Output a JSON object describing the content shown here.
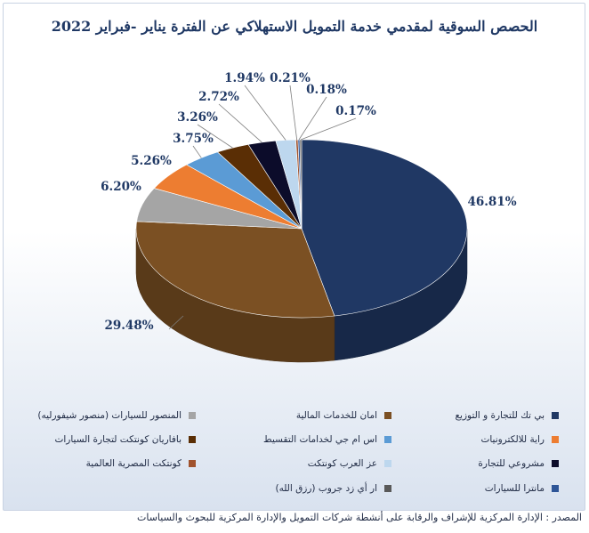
{
  "chart_data": {
    "type": "pie",
    "title": "الحصص السوقية لمقدمي خدمة التمويل الاستهلاكي عن الفترة يناير -فبراير 2022",
    "series": [
      {
        "name": "بي تك للتجارة و التوزيع",
        "value": 46.81,
        "label": "46.81%",
        "color": "#203864"
      },
      {
        "name": "امان للخدمات المالية",
        "value": 29.48,
        "label": "29.48%",
        "color": "#7b5023"
      },
      {
        "name": "المنصور للسيارات (منصور شيفورليه)",
        "value": 6.2,
        "label": "6.20%",
        "color": "#a5a5a5"
      },
      {
        "name": "راية للالكترونيات",
        "value": 5.26,
        "label": "5.26%",
        "color": "#ed7d31"
      },
      {
        "name": "اس ام جي لخدامات التقسيط",
        "value": 3.75,
        "label": "3.75%",
        "color": "#5b9bd5"
      },
      {
        "name": "بافاريان كونتكت لتجارة السيارات",
        "value": 3.26,
        "label": "3.26%",
        "color": "#5a2e05"
      },
      {
        "name": "مشروعي للتجارة",
        "value": 2.72,
        "label": "2.72%",
        "color": "#0c0c2a"
      },
      {
        "name": "عز العرب كونتكت",
        "value": 1.94,
        "label": "1.94%",
        "color": "#bdd7ee"
      },
      {
        "name": "كونتكت المصرية العالمية",
        "value": 0.21,
        "label": "0.21%",
        "color": "#a0522d"
      },
      {
        "name": "مانترا للسيارات",
        "value": 0.18,
        "label": "0.18%",
        "color": "#2e5597"
      },
      {
        "name": "ار أي زد جروب (رزق الله)",
        "value": 0.17,
        "label": "0.17%",
        "color": "#595959"
      }
    ],
    "legend_position": "bottom"
  },
  "source": "المصدر : الإدارة المركزية للإشراف والرقابة على أنشطة شركات التمويل والإدارة المركزية للبحوث والسياسات"
}
